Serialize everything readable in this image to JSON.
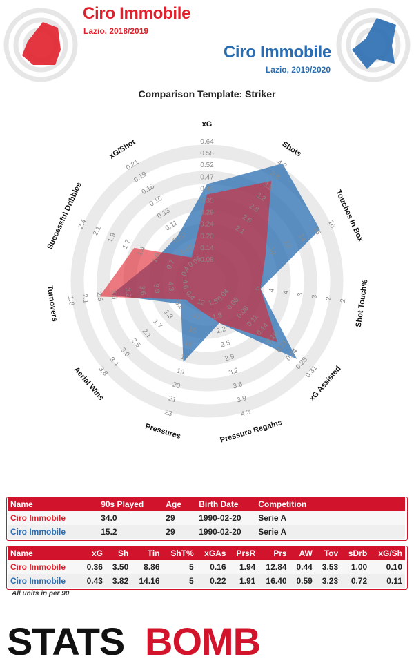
{
  "header": {
    "player1_name": "Ciro Immobile",
    "player1_sub": "Lazio, 2018/2019",
    "player2_name": "Ciro Immobile",
    "player2_sub": "Lazio, 2019/2020"
  },
  "colors": {
    "player1": "#e0202c",
    "player2": "#2a6db0",
    "brand": "#d2132c"
  },
  "chart_data": {
    "type": "radar",
    "title": "Comparison Template: Striker",
    "axes": [
      {
        "name": "xG",
        "ticks": [
          "0.08",
          "0.14",
          "0.20",
          "0.24",
          "0.29",
          "0.35",
          "0.41",
          "0.47",
          "0.52",
          "0.58",
          "0.64"
        ]
      },
      {
        "name": "Shots",
        "ticks": [
          "",
          "",
          "",
          "2.1",
          "2.5",
          "2.8",
          "3.2",
          "3.5",
          "3.8",
          "4.2"
        ]
      },
      {
        "name": "Touches In Box",
        "ticks": [
          "",
          "",
          "",
          "10",
          "12",
          "14",
          "15",
          "16"
        ]
      },
      {
        "name": "Shot Touch%",
        "ticks": [
          "",
          "",
          "5",
          "4",
          "4",
          "3",
          "3",
          "2",
          "2"
        ]
      },
      {
        "name": "xG Assisted",
        "ticks": [
          "0.04",
          "0.06",
          "0.08",
          "0.11",
          "0.14",
          "0.18",
          "0.21",
          "0.24",
          "0.28",
          "0.31"
        ]
      },
      {
        "name": "Pressure Regains",
        "ticks": [
          "1.5",
          "1.8",
          "2.2",
          "2.5",
          "2.9",
          "3.2",
          "3.6",
          "3.9",
          "4.3"
        ]
      },
      {
        "name": "Pressures",
        "ticks": [
          "12",
          "13",
          "15",
          "16",
          "17",
          "19",
          "20",
          "21",
          "23"
        ]
      },
      {
        "name": "Aerial Wins",
        "ticks": [
          "0.4",
          "0.8",
          "1.3",
          "1.7",
          "2.1",
          "2.5",
          "3.0",
          "3.4",
          "3.8"
        ]
      },
      {
        "name": "Turnovers",
        "ticks": [
          "4.6",
          "4.3",
          "3.9",
          "3.6",
          "3.2",
          "2.8",
          "2.5",
          "2.1",
          "1.8"
        ]
      },
      {
        "name": "Successful Dribbles",
        "ticks": [
          "0.4",
          "0.7",
          "1.0",
          "1.4",
          "1.7",
          "1.9",
          "2.1",
          "2.4"
        ]
      },
      {
        "name": "xG/Shot",
        "ticks": [
          "0.05",
          "0.08",
          "0.10",
          "0.11",
          "0.13",
          "0.16",
          "0.18",
          "0.19",
          "0.21"
        ]
      }
    ],
    "series": [
      {
        "name": "Ciro Immobile",
        "values": [
          0.36,
          3.5,
          8.86,
          5,
          0.16,
          1.94,
          12.84,
          0.44,
          3.53,
          1.0,
          0.1
        ]
      },
      {
        "name": "Ciro Immobile",
        "values": [
          0.43,
          3.82,
          14.16,
          5,
          0.22,
          1.91,
          16.4,
          0.59,
          3.23,
          0.72,
          0.11
        ]
      }
    ],
    "normalized_values": [
      [
        0.55,
        0.8,
        0.38,
        0.3,
        0.6,
        0.22,
        0.11,
        0.1,
        0.72,
        0.5,
        0.1
      ],
      [
        0.63,
        0.96,
        0.84,
        0.3,
        0.8,
        0.22,
        0.53,
        0.15,
        0.63,
        0.31,
        0.3
      ]
    ]
  },
  "table1": {
    "headers": [
      "Name",
      "90s Played",
      "Age",
      "Birth Date",
      "Competition"
    ],
    "rows": [
      [
        "Ciro Immobile",
        "34.0",
        "29",
        "1990-02-20",
        "Serie A"
      ],
      [
        "Ciro Immobile",
        "15.2",
        "29",
        "1990-02-20",
        "Serie A"
      ]
    ]
  },
  "table2": {
    "headers": [
      "Name",
      "xG",
      "Sh",
      "Tin",
      "ShT%",
      "xGAs",
      "PrsR",
      "Prs",
      "AW",
      "Tov",
      "sDrb",
      "xG/Sh"
    ],
    "rows": [
      [
        "Ciro Immobile",
        "0.36",
        "3.50",
        "8.86",
        "5",
        "0.16",
        "1.94",
        "12.84",
        "0.44",
        "3.53",
        "1.00",
        "0.10"
      ],
      [
        "Ciro Immobile",
        "0.43",
        "3.82",
        "14.16",
        "5",
        "0.22",
        "1.91",
        "16.40",
        "0.59",
        "3.23",
        "0.72",
        "0.11"
      ]
    ]
  },
  "units_note": "All units in per 90",
  "logo": {
    "text_left": "STATS",
    "text_right": "BOMB"
  }
}
